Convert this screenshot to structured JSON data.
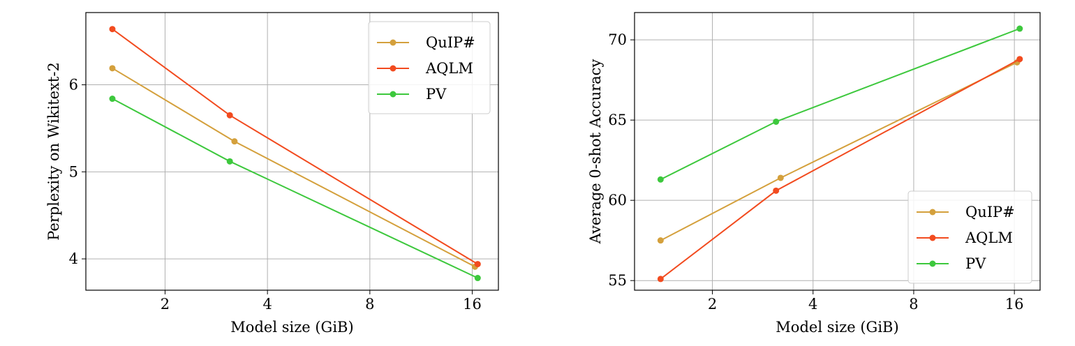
{
  "chart_data": [
    {
      "type": "line",
      "xscale": "log2",
      "xlabel": "Model size (GiB)",
      "ylabel": "Perplexity on Wikitext-2",
      "xlim": [
        1.17,
        19.1
      ],
      "ylim": [
        3.64,
        6.83
      ],
      "xticks": [
        2,
        4,
        8,
        16
      ],
      "xtick_labels": [
        "2",
        "4",
        "8",
        "16"
      ],
      "yticks": [
        4,
        5,
        6
      ],
      "ytick_labels": [
        "4",
        "5",
        "6"
      ],
      "grid": true,
      "legend_position": "top-right",
      "series": [
        {
          "name": "QuIP#",
          "color": "#D4A03C",
          "x": [
            1.4,
            3.2,
            16.3
          ],
          "y": [
            6.19,
            5.35,
            3.91
          ]
        },
        {
          "name": "AQLM",
          "color": "#F24B1F",
          "x": [
            1.4,
            3.1,
            16.6
          ],
          "y": [
            6.64,
            5.65,
            3.94
          ]
        },
        {
          "name": "PV",
          "color": "#3DC83D",
          "x": [
            1.4,
            3.1,
            16.6
          ],
          "y": [
            5.84,
            5.12,
            3.78
          ]
        }
      ]
    },
    {
      "type": "line",
      "xscale": "log2",
      "xlabel": "Model size (GiB)",
      "ylabel": "Average 0-shot Accuracy",
      "xlim": [
        1.17,
        19.1
      ],
      "ylim": [
        54.4,
        71.7
      ],
      "xticks": [
        2,
        4,
        8,
        16
      ],
      "xtick_labels": [
        "2",
        "4",
        "8",
        "16"
      ],
      "yticks": [
        55,
        60,
        65,
        70
      ],
      "ytick_labels": [
        "55",
        "60",
        "65",
        "70"
      ],
      "grid": true,
      "legend_position": "bottom-right",
      "series": [
        {
          "name": "QuIP#",
          "color": "#D4A03C",
          "x": [
            1.4,
            3.2,
            16.3
          ],
          "y": [
            57.5,
            61.4,
            68.6
          ]
        },
        {
          "name": "AQLM",
          "color": "#F24B1F",
          "x": [
            1.4,
            3.1,
            16.6
          ],
          "y": [
            55.1,
            60.6,
            68.8
          ]
        },
        {
          "name": "PV",
          "color": "#3DC83D",
          "x": [
            1.4,
            3.1,
            16.6
          ],
          "y": [
            61.3,
            64.9,
            70.7
          ]
        }
      ]
    }
  ]
}
